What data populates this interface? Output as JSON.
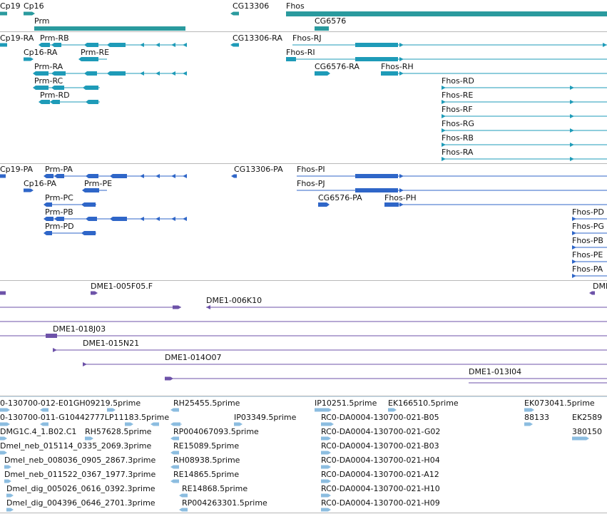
{
  "colors": {
    "gene": "#2a9a9e",
    "transcript": "#1e9bb8",
    "protein": "#2f66c8",
    "cdna": "#6d52a8",
    "est": "#8cbde0",
    "separator": "#b8b8b8"
  },
  "tracks": {
    "genes": {
      "labels": [
        "Cp19",
        "Cp16",
        "Prm",
        "CG13306",
        "Fhos",
        "CG6576"
      ]
    },
    "transcripts": {
      "labels": [
        "Cp19-RA",
        "Prm-RB",
        "Cp16-RA",
        "Prm-RE",
        "Prm-RA",
        "Prm-RC",
        "Prm-RD",
        "CG13306-RA",
        "Fhos-RJ",
        "Fhos-RI",
        "CG6576-RA",
        "Fhos-RH",
        "Fhos-RD",
        "Fhos-RE",
        "Fhos-RF",
        "Fhos-RG",
        "Fhos-RB",
        "Fhos-RA"
      ]
    },
    "proteins": {
      "labels": [
        "Cp19-PA",
        "Prm-PA",
        "Cp16-PA",
        "Prm-PE",
        "Prm-PC",
        "Prm-PB",
        "Prm-PD",
        "CG13306-PA",
        "Fhos-PI",
        "Fhos-PJ",
        "CG6576-PA",
        "Fhos-PH",
        "Fhos-PD",
        "Fhos-PG",
        "Fhos-PB",
        "Fhos-PE",
        "Fhos-PA"
      ]
    },
    "cdna": {
      "labels": [
        "DME1-005F05.F",
        "DMI",
        "DME1-006K10",
        "DME1-018J03",
        "DME1-015N21",
        "DME1-014O07",
        "DME1-013I04"
      ]
    },
    "est": {
      "labels": [
        "0-130700-012-E01GH09219.5prime",
        "RH25455.5prime",
        "IP10251.5prime",
        "EK166510.5prime",
        "EK073041.5prime",
        "0-130700-011-G10442777LP11183.5prime",
        "IP03349.5prime",
        "RC0-DA0004-130700-021-B05",
        "88133",
        "EK2589",
        "DMG1C.4_1.B02.C1",
        "RH57628.5prime",
        "RP004067093.5prime",
        "RC0-DA0004-130700-021-G02",
        "380150",
        "Dmel_neb_015114_0335_2069.3prime",
        "RE15089.5prime",
        "RC0-DA0004-130700-021-B03",
        "Dmel_neb_008036_0905_2867.3prime",
        "RH08938.5prime",
        "RC0-DA0004-130700-021-H04",
        "Dmel_neb_011522_0367_1977.3prime",
        "RE14865.5prime",
        "RC0-DA0004-130700-021-A12",
        "Dmel_dig_005026_0616_0392.3prime",
        "RE14868.5prime",
        "RC0-DA0004-130700-021-H10",
        "Dmel_dig_004396_0646_2701.3prime",
        "RP004263301.5prime",
        "RC0-DA0004-130700-021-H09"
      ]
    }
  }
}
